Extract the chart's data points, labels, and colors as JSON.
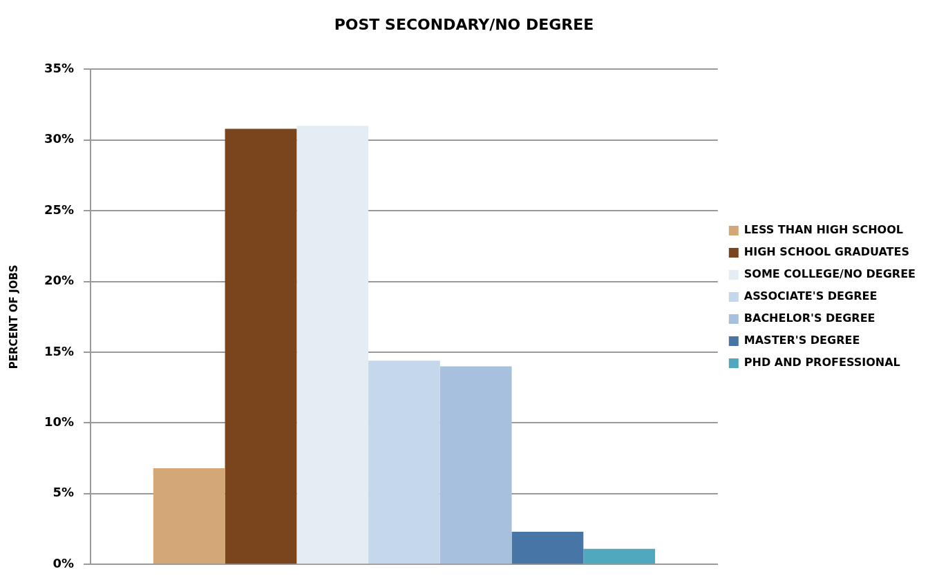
{
  "chart_data": {
    "type": "bar",
    "title": "POST SECONDARY/NO DEGREE",
    "ylabel": "PERCENT OF JOBS",
    "categories": [
      null
    ],
    "series": [
      {
        "name": "LESS THAN HIGH SCHOOL",
        "color": "#d4a777",
        "values": [
          6.8
        ]
      },
      {
        "name": "HIGH SCHOOL GRADUATES",
        "color": "#7a441c",
        "values": [
          30.8
        ]
      },
      {
        "name": "SOME COLLEGE/NO DEGREE",
        "color": "#e4ecf4",
        "values": [
          31.0
        ]
      },
      {
        "name": "ASSOCIATE'S DEGREE",
        "color": "#c5d7eb",
        "values": [
          14.4
        ]
      },
      {
        "name": "BACHELOR'S DEGREE",
        "color": "#a6c0de",
        "values": [
          14.0
        ]
      },
      {
        "name": "MASTER'S DEGREE",
        "color": "#4675a6",
        "values": [
          2.3
        ]
      },
      {
        "name": "PHD AND PROFESSIONAL",
        "color": "#4fa8bd",
        "values": [
          1.1
        ]
      }
    ],
    "ylim": [
      0,
      35
    ],
    "yticks": [
      {
        "value": 0,
        "label": "0%"
      },
      {
        "value": 5,
        "label": "5%"
      },
      {
        "value": 10,
        "label": "10%"
      },
      {
        "value": 15,
        "label": "15%"
      },
      {
        "value": 20,
        "label": "20%"
      },
      {
        "value": 25,
        "label": "25%"
      },
      {
        "value": 30,
        "label": "30%"
      },
      {
        "value": 35,
        "label": "35%"
      }
    ],
    "grid": "y",
    "legend": "right"
  }
}
